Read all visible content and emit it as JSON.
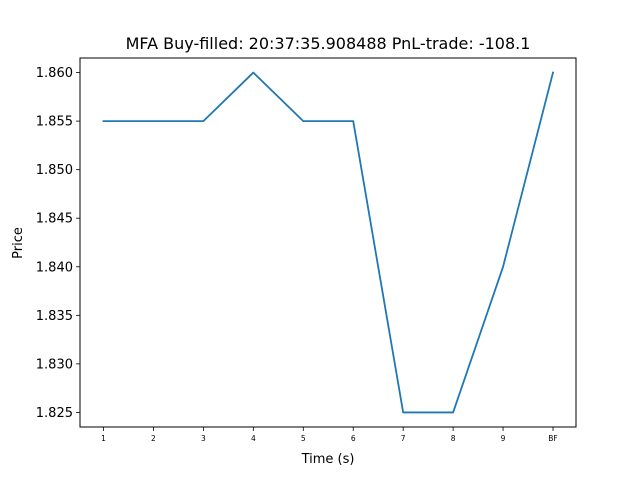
{
  "chart_data": {
    "type": "line",
    "title": "MFA  Buy-filled:  20:37:35.908488  PnL-trade:  -108.1",
    "xlabel": "Time (s)",
    "ylabel": "Price",
    "categories": [
      "1",
      "2",
      "3",
      "4",
      "5",
      "6",
      "7",
      "8",
      "9",
      "BF"
    ],
    "series": [
      {
        "values": [
          1.855,
          1.855,
          1.855,
          1.86,
          1.855,
          1.855,
          1.825,
          1.825,
          1.84,
          1.86
        ],
        "color": "#1f77b4"
      }
    ],
    "ylim": [
      1.8235,
      1.8615
    ],
    "yticks": [
      "1.825",
      "1.830",
      "1.835",
      "1.840",
      "1.845",
      "1.850",
      "1.855",
      "1.860"
    ],
    "grid": false,
    "legend": "none"
  }
}
